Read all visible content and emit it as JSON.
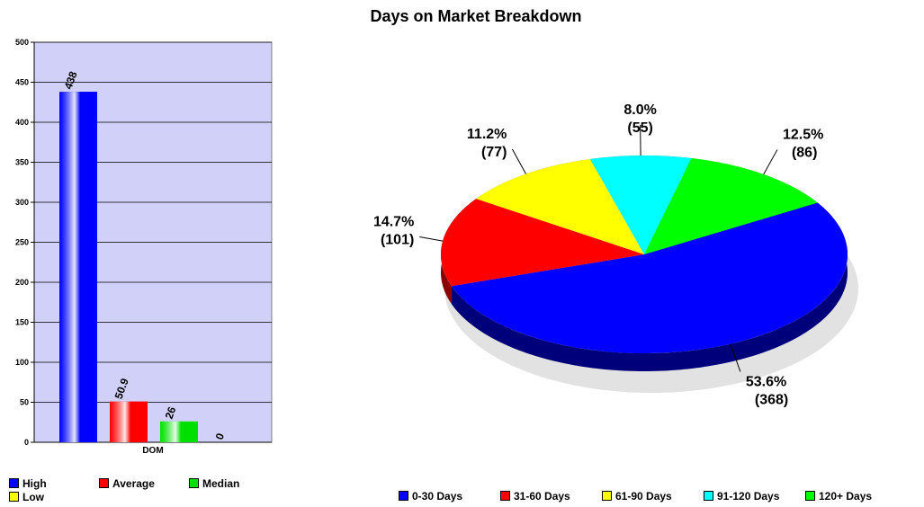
{
  "title": "Days on Market Breakdown",
  "chart_data": [
    {
      "type": "bar",
      "categories": [
        "DOM"
      ],
      "series": [
        {
          "name": "High",
          "values": [
            438
          ],
          "label": "438",
          "color": "#0000ff"
        },
        {
          "name": "Average",
          "values": [
            50.9
          ],
          "label": "50.9",
          "color": "#ff0000"
        },
        {
          "name": "Median",
          "values": [
            26
          ],
          "label": "26",
          "color": "#00e000"
        },
        {
          "name": "Low",
          "values": [
            0
          ],
          "label": "0",
          "color": "#ffff00"
        }
      ],
      "yticks": [
        "0",
        "50",
        "100",
        "150",
        "200",
        "250",
        "300",
        "350",
        "400",
        "450",
        "500"
      ],
      "ylim": [
        0,
        500
      ],
      "grid": true,
      "plot_background": "#d0d0f8",
      "legend_position": "bottom"
    },
    {
      "type": "pie",
      "slices": [
        {
          "name": "0-30 Days",
          "value": 368,
          "percent_label": "53.6%",
          "count_label": "(368)",
          "color": "#0000ff",
          "dark": "#00007a"
        },
        {
          "name": "31-60 Days",
          "value": 101,
          "percent_label": "14.7%",
          "count_label": "(101)",
          "color": "#ff0000",
          "dark": "#8a0000"
        },
        {
          "name": "61-90 Days",
          "value": 77,
          "percent_label": "11.2%",
          "count_label": "(77)",
          "color": "#ffff00",
          "dark": "#8a8a00"
        },
        {
          "name": "91-120 Days",
          "value": 55,
          "percent_label": "8.0%",
          "count_label": "(55)",
          "color": "#00ffff",
          "dark": "#008a8a"
        },
        {
          "name": "120+ Days",
          "value": 86,
          "percent_label": "12.5%",
          "count_label": "(86)",
          "color": "#00ff00",
          "dark": "#008a00"
        }
      ],
      "legend_position": "bottom",
      "style": "3d-exploded"
    }
  ]
}
